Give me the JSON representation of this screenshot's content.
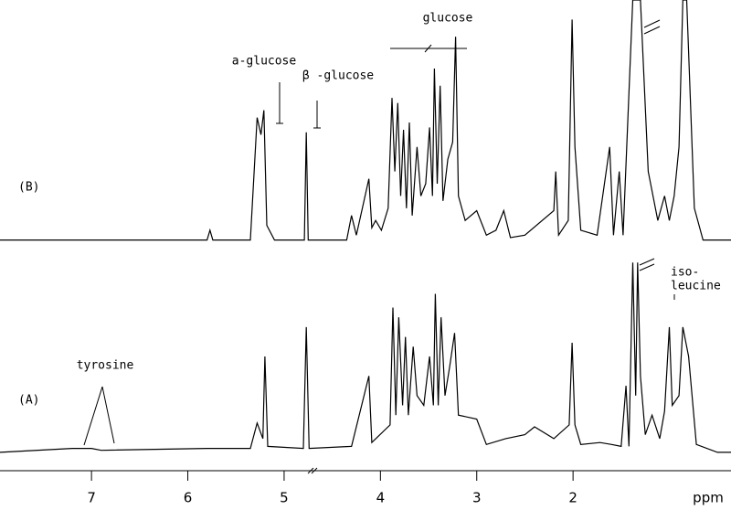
{
  "chart_data": [
    {
      "type": "line",
      "label": "(B)",
      "color": "#000000",
      "xlim": [
        7.95,
        0.36
      ],
      "ylim": [
        0,
        100
      ],
      "annotations": [
        "glucose",
        "a-glucose",
        "β -glucose"
      ],
      "x": [
        7.95,
        5.8,
        5.77,
        5.74,
        5.35,
        5.28,
        5.24,
        5.21,
        5.18,
        5.1,
        4.79,
        4.77,
        4.75,
        4.35,
        4.3,
        4.25,
        4.12,
        4.09,
        4.05,
        3.99,
        3.92,
        3.88,
        3.85,
        3.82,
        3.79,
        3.76,
        3.73,
        3.7,
        3.67,
        3.62,
        3.58,
        3.53,
        3.49,
        3.46,
        3.44,
        3.41,
        3.38,
        3.35,
        3.3,
        3.25,
        3.22,
        3.19,
        3.12,
        3.0,
        2.9,
        2.8,
        2.72,
        2.65,
        2.5,
        2.2,
        2.18,
        2.15,
        2.05,
        2.01,
        1.98,
        1.92,
        1.75,
        1.62,
        1.58,
        1.52,
        1.48,
        1.38,
        1.3,
        1.22,
        1.12,
        1.05,
        1.0,
        0.95,
        0.9,
        0.86,
        0.82,
        0.74,
        0.65,
        0.36
      ],
      "values": [
        2,
        2,
        6,
        2,
        2,
        52,
        45,
        55,
        8,
        2,
        2,
        46,
        2,
        2,
        12,
        4,
        27,
        7,
        10,
        6,
        15,
        60,
        30,
        58,
        20,
        47,
        15,
        50,
        12,
        40,
        20,
        25,
        48,
        20,
        72,
        25,
        65,
        18,
        35,
        42,
        85,
        20,
        10,
        14,
        4,
        6,
        14,
        3,
        4,
        14,
        30,
        4,
        10,
        92,
        40,
        6,
        4,
        40,
        4,
        30,
        4,
        100,
        100,
        30,
        10,
        20,
        10,
        20,
        40,
        100,
        100,
        15,
        2,
        2
      ]
    },
    {
      "type": "line",
      "label": "(A)",
      "color": "#000000",
      "xlim": [
        7.95,
        0.36
      ],
      "ylim": [
        0,
        100
      ],
      "annotations": [
        "tyrosine",
        "iso-",
        "leucine"
      ],
      "xticks": [
        7,
        6,
        5,
        4,
        3,
        2
      ],
      "xlabel": "ppm",
      "x": [
        7.95,
        7.2,
        7.0,
        6.9,
        5.8,
        5.35,
        5.28,
        5.22,
        5.2,
        5.17,
        4.8,
        4.77,
        4.74,
        4.3,
        4.12,
        4.09,
        3.9,
        3.87,
        3.84,
        3.81,
        3.77,
        3.74,
        3.71,
        3.66,
        3.62,
        3.55,
        3.49,
        3.45,
        3.43,
        3.4,
        3.37,
        3.33,
        3.28,
        3.23,
        3.19,
        3.0,
        2.9,
        2.7,
        2.5,
        2.4,
        2.2,
        2.04,
        2.01,
        1.98,
        1.92,
        1.72,
        1.6,
        1.5,
        1.45,
        1.42,
        1.38,
        1.35,
        1.33,
        1.3,
        1.25,
        1.18,
        1.1,
        1.05,
        1.0,
        0.97,
        0.9,
        0.86,
        0.8,
        0.72,
        0.5,
        0.36
      ],
      "values": [
        1,
        3,
        3,
        2,
        3,
        3,
        16,
        8,
        50,
        4,
        3,
        65,
        3,
        4,
        40,
        6,
        15,
        75,
        20,
        70,
        25,
        60,
        20,
        55,
        30,
        25,
        50,
        25,
        82,
        25,
        70,
        30,
        45,
        62,
        20,
        18,
        5,
        8,
        10,
        14,
        8,
        15,
        57,
        15,
        5,
        6,
        5,
        4,
        35,
        4,
        98,
        30,
        98,
        40,
        10,
        20,
        8,
        22,
        65,
        25,
        30,
        65,
        50,
        5,
        1,
        1
      ]
    }
  ]
}
